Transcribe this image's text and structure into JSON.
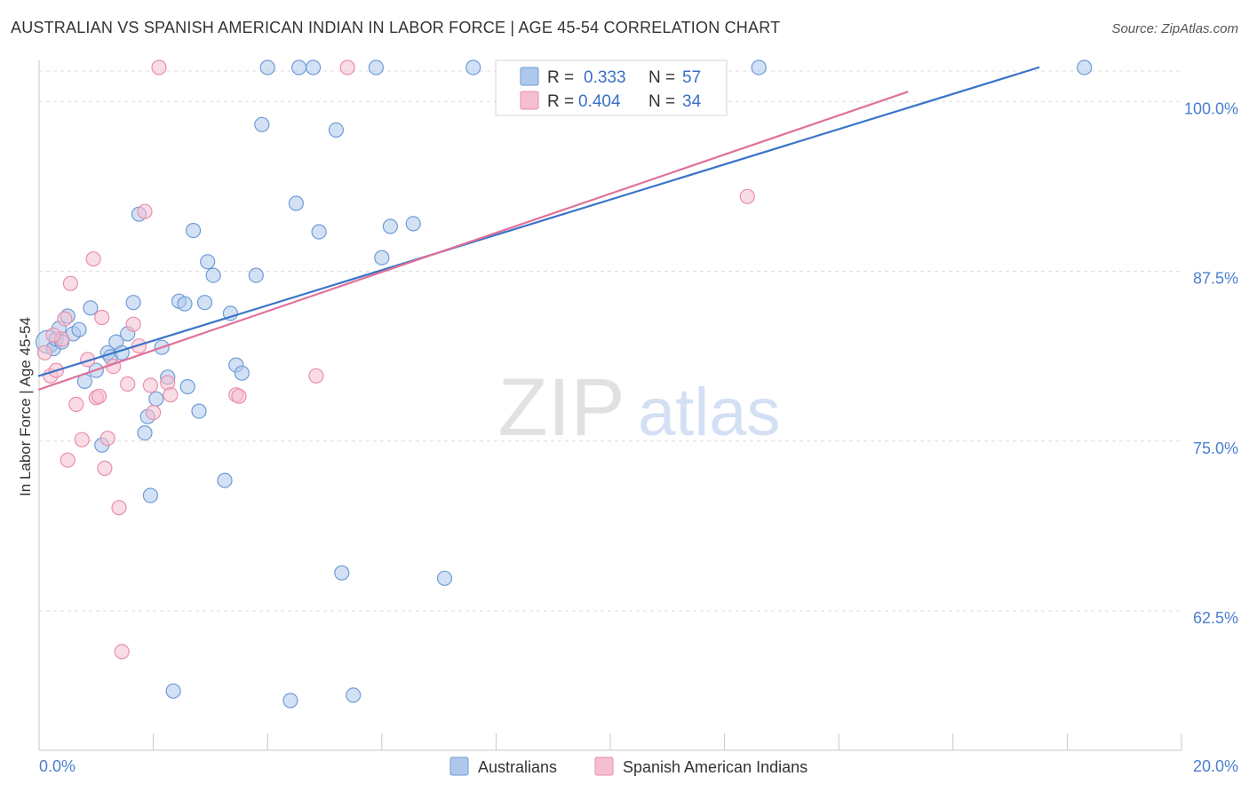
{
  "chart_data": {
    "type": "scatter",
    "title": "AUSTRALIAN VS SPANISH AMERICAN INDIAN IN LABOR FORCE | AGE 45-54 CORRELATION CHART",
    "source": "Source: ZipAtlas.com",
    "ylabel": "In Labor Force | Age 45-54",
    "xlabel": "",
    "xlim": [
      0,
      20
    ],
    "ylim": [
      52.5,
      102.5
    ],
    "x_tick_labels": [
      "0.0%",
      "20.0%"
    ],
    "y_ticks": [
      {
        "value": 100.0,
        "label": "100.0%"
      },
      {
        "value": 87.5,
        "label": "87.5%"
      },
      {
        "value": 75.0,
        "label": "75.0%"
      },
      {
        "value": 62.5,
        "label": "62.5%"
      }
    ],
    "grid": true,
    "watermark": {
      "zip": "ZIP",
      "atlas": "atlas"
    },
    "colors": {
      "blue_fill": "#aec8ec",
      "blue_stroke": "#6f9bd6",
      "blue_line": "#3a74c9",
      "pink_fill": "#f5bfd0",
      "pink_stroke": "#e88fac",
      "pink_line": "#e0709a",
      "legend_value": "#3a6fc4",
      "axis_label": "#4b7fcf",
      "grid": "#dcdcdc",
      "axis": "#c8c8c8"
    },
    "legend_stats": [
      {
        "series": "Australians",
        "r_label": "R =",
        "r_value": "0.333",
        "n_label": "N =",
        "n_value": "57"
      },
      {
        "series": "Spanish American Indians",
        "r_label": "R =",
        "r_value": "0.404",
        "n_label": "N =",
        "n_value": "34"
      }
    ],
    "legend_bottom": [
      "Australians",
      "Spanish American Indians"
    ],
    "series": [
      {
        "name": "Australians",
        "trend": {
          "x0": 0.0,
          "y0": 79.8,
          "x1": 17.5,
          "y1": 102.5
        },
        "points": [
          [
            0.15,
            82.3
          ],
          [
            0.25,
            81.8
          ],
          [
            0.3,
            82.5
          ],
          [
            0.35,
            83.3
          ],
          [
            0.4,
            82.3
          ],
          [
            0.5,
            84.2
          ],
          [
            0.6,
            82.9
          ],
          [
            0.7,
            83.2
          ],
          [
            0.8,
            79.4
          ],
          [
            0.9,
            84.8
          ],
          [
            1.0,
            80.2
          ],
          [
            1.1,
            74.7
          ],
          [
            1.2,
            81.5
          ],
          [
            1.25,
            81.2
          ],
          [
            1.35,
            82.3
          ],
          [
            1.45,
            81.5
          ],
          [
            1.55,
            82.9
          ],
          [
            1.65,
            85.2
          ],
          [
            1.75,
            91.7
          ],
          [
            1.85,
            75.6
          ],
          [
            1.9,
            76.8
          ],
          [
            1.95,
            71.0
          ],
          [
            2.05,
            78.1
          ],
          [
            2.15,
            81.9
          ],
          [
            2.25,
            79.7
          ],
          [
            2.35,
            56.6
          ],
          [
            2.45,
            85.3
          ],
          [
            2.55,
            85.1
          ],
          [
            2.6,
            79.0
          ],
          [
            2.7,
            90.5
          ],
          [
            2.8,
            77.2
          ],
          [
            2.9,
            85.2
          ],
          [
            2.95,
            88.2
          ],
          [
            3.05,
            87.2
          ],
          [
            3.25,
            72.1
          ],
          [
            3.35,
            84.4
          ],
          [
            3.45,
            80.6
          ],
          [
            3.55,
            80.0
          ],
          [
            3.8,
            87.2
          ],
          [
            3.9,
            98.3
          ],
          [
            4.0,
            102.5
          ],
          [
            4.4,
            55.9
          ],
          [
            4.5,
            92.5
          ],
          [
            4.55,
            102.5
          ],
          [
            4.8,
            102.5
          ],
          [
            4.9,
            90.4
          ],
          [
            5.2,
            97.9
          ],
          [
            5.3,
            65.3
          ],
          [
            5.5,
            56.3
          ],
          [
            5.9,
            102.5
          ],
          [
            6.0,
            88.5
          ],
          [
            6.15,
            90.8
          ],
          [
            6.55,
            91.0
          ],
          [
            7.1,
            64.9
          ],
          [
            7.6,
            102.5
          ],
          [
            12.6,
            102.5
          ],
          [
            18.3,
            102.5
          ]
        ]
      },
      {
        "name": "Spanish American Indians",
        "trend": {
          "x0": 0.0,
          "y0": 78.8,
          "x1": 15.2,
          "y1": 100.7
        },
        "points": [
          [
            0.1,
            81.5
          ],
          [
            0.2,
            79.8
          ],
          [
            0.3,
            80.2
          ],
          [
            0.4,
            82.5
          ],
          [
            0.45,
            84.0
          ],
          [
            0.5,
            73.6
          ],
          [
            0.55,
            86.6
          ],
          [
            0.65,
            77.7
          ],
          [
            0.75,
            75.1
          ],
          [
            0.85,
            81.0
          ],
          [
            0.95,
            88.4
          ],
          [
            1.0,
            78.2
          ],
          [
            1.05,
            78.3
          ],
          [
            1.1,
            84.1
          ],
          [
            1.15,
            73.0
          ],
          [
            1.2,
            75.2
          ],
          [
            1.3,
            80.5
          ],
          [
            1.4,
            70.1
          ],
          [
            1.45,
            59.5
          ],
          [
            1.55,
            79.2
          ],
          [
            1.65,
            83.6
          ],
          [
            1.75,
            82.0
          ],
          [
            1.85,
            91.9
          ],
          [
            1.95,
            79.1
          ],
          [
            2.0,
            77.1
          ],
          [
            2.1,
            102.5
          ],
          [
            2.25,
            79.3
          ],
          [
            2.3,
            78.4
          ],
          [
            3.45,
            78.4
          ],
          [
            3.5,
            78.3
          ],
          [
            4.85,
            79.8
          ],
          [
            5.4,
            102.5
          ],
          [
            12.4,
            93.0
          ],
          [
            0.25,
            82.8
          ]
        ]
      }
    ]
  }
}
